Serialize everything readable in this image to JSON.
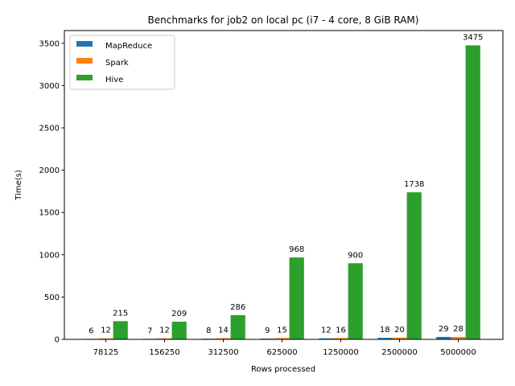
{
  "chart_data": {
    "type": "bar",
    "title": "Benchmarks for job2 on local pc (i7 - 4 core, 8 GiB RAM)",
    "xlabel": "Rows processed",
    "ylabel": "Time(s)",
    "categories": [
      "78125",
      "156250",
      "312500",
      "625000",
      "1250000",
      "2500000",
      "5000000"
    ],
    "series": [
      {
        "name": "MapReduce",
        "values": [
          6,
          7,
          8,
          9,
          12,
          18,
          29
        ],
        "color": "#1f77b4"
      },
      {
        "name": "Spark",
        "values": [
          12,
          12,
          14,
          15,
          16,
          20,
          28
        ],
        "color": "#ff7f0e"
      },
      {
        "name": "Hive",
        "values": [
          215,
          209,
          286,
          968,
          900,
          1738,
          3475
        ],
        "color": "#2ca02c"
      }
    ],
    "ylim": [
      0,
      3650
    ],
    "yticks": [
      0,
      500,
      1000,
      1500,
      2000,
      2500,
      3000,
      3500
    ],
    "legend": "top-left",
    "grid": false
  }
}
